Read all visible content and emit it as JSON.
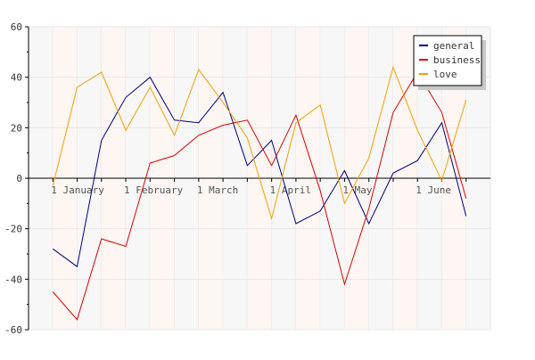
{
  "chart_data": {
    "type": "line",
    "title": "",
    "xlabel": "",
    "ylabel": "",
    "ylim": [
      -60,
      60
    ],
    "yticks": [
      -60,
      -40,
      -20,
      0,
      20,
      40,
      60
    ],
    "x_tick_labels": [
      "1 January",
      "1 February",
      "1 March",
      "1 April",
      "1 May",
      "1 June"
    ],
    "x_tick_positions": [
      1,
      4,
      7,
      10,
      13,
      16
    ],
    "grid": "horizontal",
    "band_colors": [
      "#f7f7f7",
      "#fdf6f3"
    ],
    "legend": {
      "position": "top-right"
    },
    "x": [
      1,
      2,
      3,
      4,
      5,
      6,
      7,
      8,
      9,
      10,
      11,
      12,
      13,
      14,
      15,
      16,
      17,
      18
    ],
    "series": [
      {
        "name": "general",
        "color": "#000080",
        "values": [
          -28,
          -35,
          15,
          32,
          40,
          23,
          22,
          34,
          5,
          15,
          -18,
          -13,
          3,
          -18,
          2,
          7,
          22,
          -15
        ]
      },
      {
        "name": "business",
        "color": "#dd0000",
        "values": [
          -45,
          -56,
          -24,
          -27,
          6,
          9,
          17,
          21,
          23,
          5,
          25,
          -5,
          -42,
          -12,
          26,
          42,
          26,
          -8
        ]
      },
      {
        "name": "love",
        "color": "#f0a000",
        "values": [
          -3,
          36,
          42,
          19,
          36,
          17,
          43,
          30,
          16,
          -16,
          22,
          29,
          -10,
          8,
          44,
          19,
          -1,
          31
        ]
      }
    ]
  }
}
